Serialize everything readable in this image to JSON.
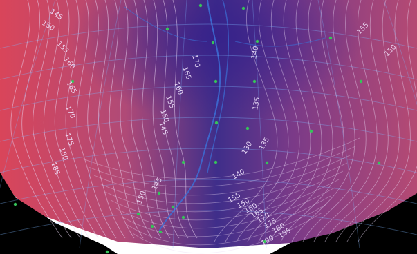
{
  "colors": {
    "hot": "#d9455a",
    "mid": "#8a3f86",
    "cool": "#3f2e8a",
    "ridge": "#3c6fd6",
    "contour": "#e9d6f3",
    "grid": "#7fb6ff",
    "marker": "#36c35a",
    "void": "#000000"
  },
  "contour_labels": [
    {
      "text": "145"
    },
    {
      "text": "150"
    },
    {
      "text": "155"
    },
    {
      "text": "160"
    },
    {
      "text": "165"
    },
    {
      "text": "170"
    },
    {
      "text": "175"
    },
    {
      "text": "180"
    },
    {
      "text": "185"
    },
    {
      "text": "170"
    },
    {
      "text": "165"
    },
    {
      "text": "160"
    },
    {
      "text": "155"
    },
    {
      "text": "150"
    },
    {
      "text": "145"
    },
    {
      "text": "140"
    },
    {
      "text": "135"
    },
    {
      "text": "130"
    },
    {
      "text": "135"
    },
    {
      "text": "140"
    },
    {
      "text": "145"
    },
    {
      "text": "150"
    },
    {
      "text": "155"
    },
    {
      "text": "150"
    },
    {
      "text": "155"
    },
    {
      "text": "150"
    },
    {
      "text": "160"
    },
    {
      "text": "165"
    },
    {
      "text": "170"
    },
    {
      "text": "175"
    },
    {
      "text": "180"
    },
    {
      "text": "185"
    },
    {
      "text": "190"
    }
  ]
}
